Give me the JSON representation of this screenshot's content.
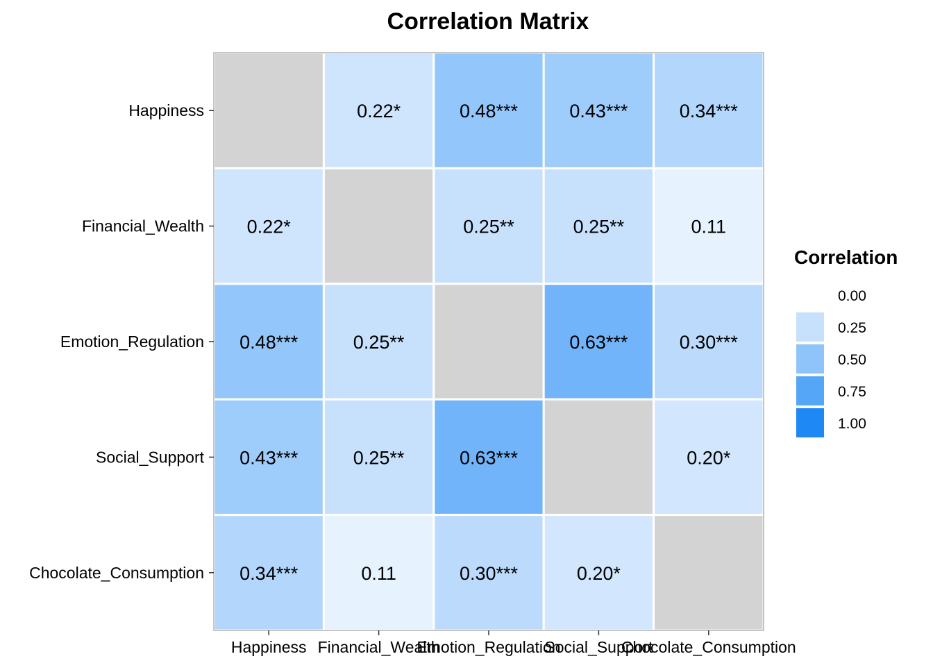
{
  "chart_data": {
    "type": "heatmap",
    "title": "Correlation Matrix",
    "variables": [
      "Happiness",
      "Financial_Wealth",
      "Emotion_Regulation",
      "Social_Support",
      "Chocolate_Consumption"
    ],
    "values": [
      [
        null,
        0.22,
        0.48,
        0.43,
        0.34
      ],
      [
        0.22,
        null,
        0.25,
        0.25,
        0.11
      ],
      [
        0.48,
        0.25,
        null,
        0.63,
        0.3
      ],
      [
        0.43,
        0.25,
        0.63,
        null,
        0.2
      ],
      [
        0.34,
        0.11,
        0.3,
        0.2,
        null
      ]
    ],
    "labels": [
      [
        "",
        "0.22*",
        "0.48***",
        "0.43***",
        "0.34***"
      ],
      [
        "0.22*",
        "",
        "0.25**",
        "0.25**",
        "0.11"
      ],
      [
        "0.48***",
        "0.25**",
        "",
        "0.63***",
        "0.30***"
      ],
      [
        "0.43***",
        "0.25**",
        "0.63***",
        "",
        "0.20*"
      ],
      [
        "0.34***",
        "0.11",
        "0.30***",
        "0.20*",
        ""
      ]
    ],
    "diagonal_color": "#d3d3d3",
    "color_low": "#ffffff",
    "color_high": "#1e88f5",
    "range": [
      0,
      1
    ],
    "legend": {
      "title": "Correlation",
      "position": "right",
      "breaks": [
        0.0,
        0.25,
        0.5,
        0.75,
        1.0
      ],
      "labels": [
        "0.00",
        "0.25",
        "0.50",
        "0.75",
        "1.00"
      ]
    },
    "grid": false
  }
}
